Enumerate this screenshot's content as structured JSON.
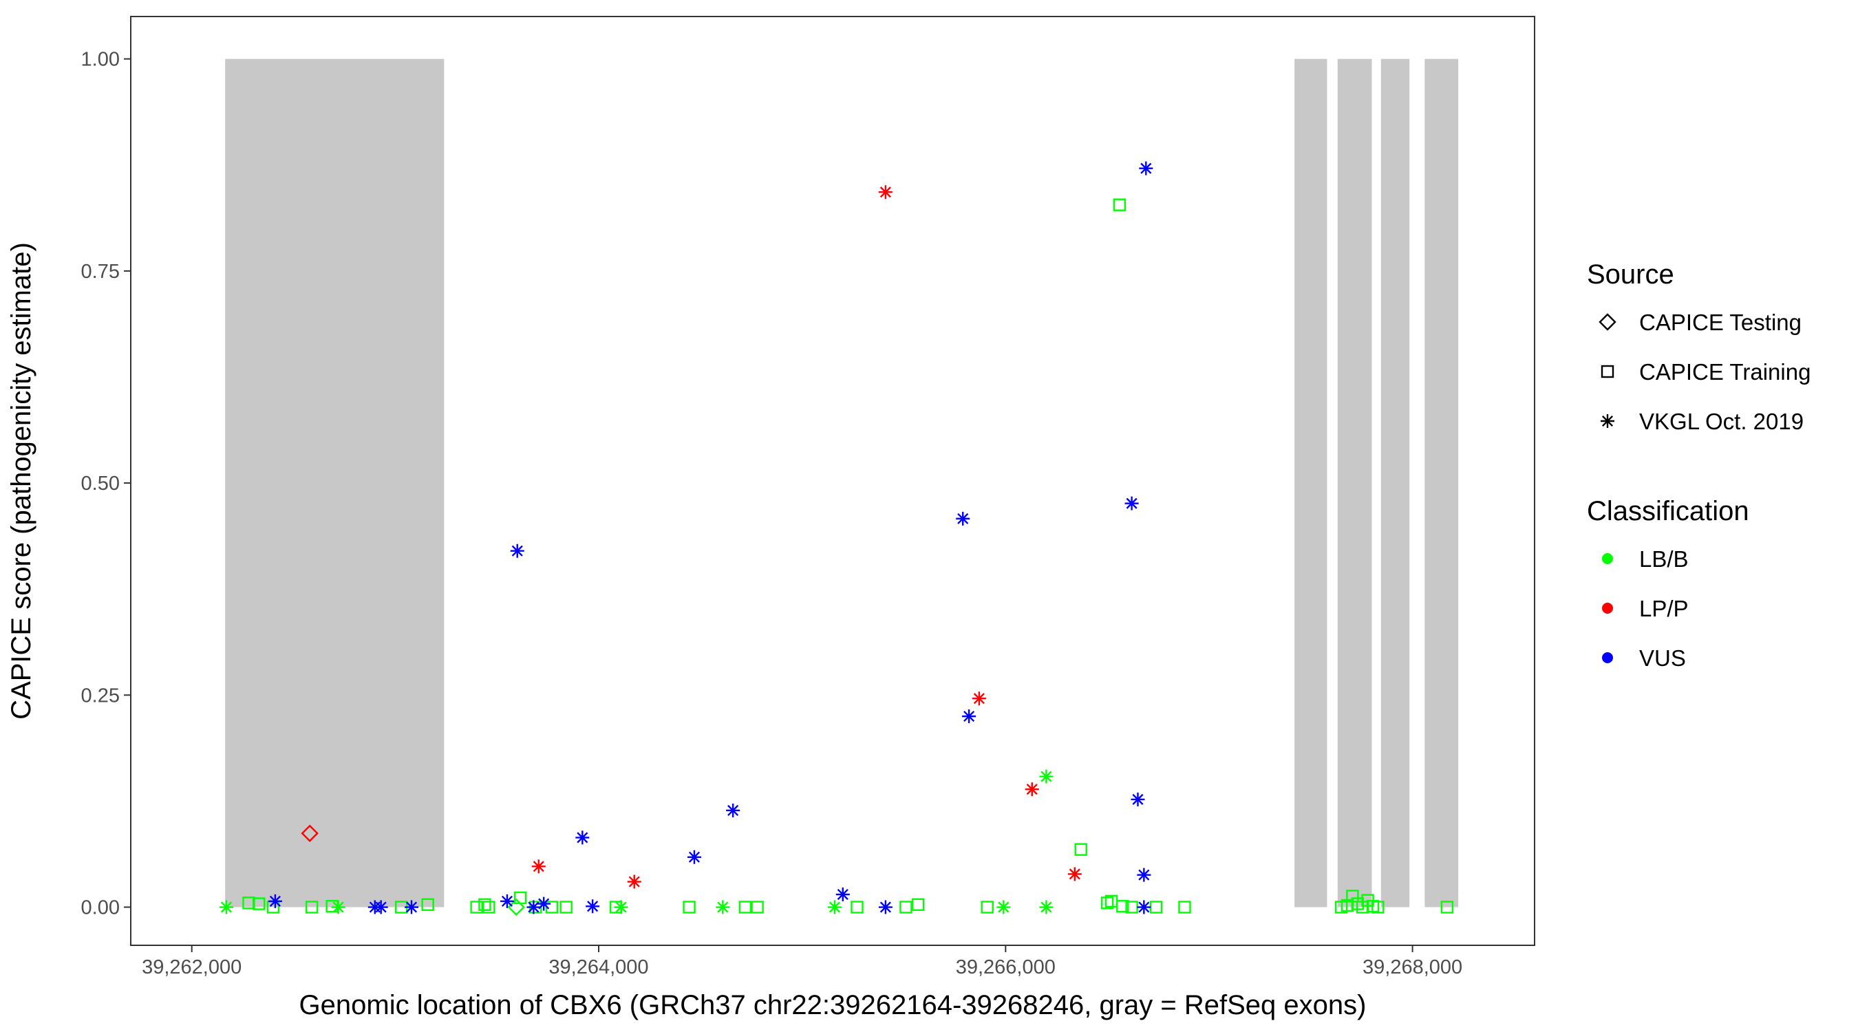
{
  "chart_data": {
    "type": "scatter",
    "title": "",
    "xlabel": "Genomic location of CBX6 (GRCh37 chr22:39262164-39268246, gray = RefSeq exons)",
    "ylabel": "CAPICE score (pathogenicity estimate)",
    "xlim": [
      39261700,
      39268600
    ],
    "ylim": [
      -0.045,
      1.05
    ],
    "x_ticks": [
      39262000,
      39264000,
      39266000,
      39268000
    ],
    "x_tick_labels": [
      "39,262,000",
      "39,264,000",
      "39,266,000",
      "39,268,000"
    ],
    "y_ticks": [
      0,
      0.25,
      0.5,
      0.75,
      1.0
    ],
    "y_tick_labels": [
      "0.00",
      "0.25",
      "0.50",
      "0.75",
      "1.00"
    ],
    "grid": false,
    "exons": [
      [
        39262164,
        39263240
      ],
      [
        39267420,
        39267580
      ],
      [
        39267632,
        39267800
      ],
      [
        39267845,
        39267985
      ],
      [
        39268060,
        39268225
      ]
    ],
    "exon_y_range": [
      0,
      1
    ],
    "exon_color": "#c8c8c8",
    "legends": [
      {
        "title": "Source",
        "position": "right",
        "entries": [
          {
            "label": "CAPICE Testing",
            "shape": "diamond"
          },
          {
            "label": "CAPICE Training",
            "shape": "square"
          },
          {
            "label": "VKGL Oct. 2019",
            "shape": "asterisk"
          }
        ]
      },
      {
        "title": "Classification",
        "position": "right",
        "entries": [
          {
            "label": "LB/B",
            "color": "#00ff00"
          },
          {
            "label": "LP/P",
            "color": "#ff0000"
          },
          {
            "label": "VUS",
            "color": "#0000ff"
          }
        ]
      }
    ],
    "class_colors": {
      "LB/B": "#00ff00",
      "LP/P": "#ff0000",
      "VUS": "#0000ff"
    },
    "points": [
      {
        "x": 39262580,
        "y": 0.087,
        "source": "CAPICE Testing",
        "class": "LP/P"
      },
      {
        "x": 39263595,
        "y": 0.0,
        "source": "CAPICE Testing",
        "class": "LB/B"
      },
      {
        "x": 39262280,
        "y": 0.005,
        "source": "CAPICE Training",
        "class": "LB/B"
      },
      {
        "x": 39262330,
        "y": 0.004,
        "source": "CAPICE Training",
        "class": "LB/B"
      },
      {
        "x": 39262400,
        "y": 0.0,
        "source": "CAPICE Training",
        "class": "LB/B"
      },
      {
        "x": 39262590,
        "y": 0.0,
        "source": "CAPICE Training",
        "class": "LB/B"
      },
      {
        "x": 39262690,
        "y": 0.001,
        "source": "CAPICE Training",
        "class": "LB/B"
      },
      {
        "x": 39263030,
        "y": 0.0,
        "source": "CAPICE Training",
        "class": "LB/B"
      },
      {
        "x": 39263160,
        "y": 0.003,
        "source": "CAPICE Training",
        "class": "LB/B"
      },
      {
        "x": 39263400,
        "y": 0.0,
        "source": "CAPICE Training",
        "class": "LB/B"
      },
      {
        "x": 39263440,
        "y": 0.003,
        "source": "CAPICE Training",
        "class": "LB/B"
      },
      {
        "x": 39263460,
        "y": 0.0,
        "source": "CAPICE Training",
        "class": "LB/B"
      },
      {
        "x": 39263615,
        "y": 0.011,
        "source": "CAPICE Training",
        "class": "LB/B"
      },
      {
        "x": 39263690,
        "y": 0.0,
        "source": "CAPICE Training",
        "class": "LB/B"
      },
      {
        "x": 39263770,
        "y": 0.0,
        "source": "CAPICE Training",
        "class": "LB/B"
      },
      {
        "x": 39263840,
        "y": 0.0,
        "source": "CAPICE Training",
        "class": "LB/B"
      },
      {
        "x": 39264085,
        "y": 0.0,
        "source": "CAPICE Training",
        "class": "LB/B"
      },
      {
        "x": 39264445,
        "y": 0.0,
        "source": "CAPICE Training",
        "class": "LB/B"
      },
      {
        "x": 39264720,
        "y": 0.0,
        "source": "CAPICE Training",
        "class": "LB/B"
      },
      {
        "x": 39264780,
        "y": 0.0,
        "source": "CAPICE Training",
        "class": "LB/B"
      },
      {
        "x": 39265270,
        "y": 0.0,
        "source": "CAPICE Training",
        "class": "LB/B"
      },
      {
        "x": 39265510,
        "y": 0.0,
        "source": "CAPICE Training",
        "class": "LB/B"
      },
      {
        "x": 39265570,
        "y": 0.003,
        "source": "CAPICE Training",
        "class": "LB/B"
      },
      {
        "x": 39265910,
        "y": 0.0,
        "source": "CAPICE Training",
        "class": "LB/B"
      },
      {
        "x": 39266370,
        "y": 0.068,
        "source": "CAPICE Training",
        "class": "LB/B"
      },
      {
        "x": 39266500,
        "y": 0.005,
        "source": "CAPICE Training",
        "class": "LB/B"
      },
      {
        "x": 39266520,
        "y": 0.007,
        "source": "CAPICE Training",
        "class": "LB/B"
      },
      {
        "x": 39266560,
        "y": 0.828,
        "source": "CAPICE Training",
        "class": "LB/B"
      },
      {
        "x": 39266575,
        "y": 0.001,
        "source": "CAPICE Training",
        "class": "LB/B"
      },
      {
        "x": 39266620,
        "y": 0.0,
        "source": "CAPICE Training",
        "class": "LB/B"
      },
      {
        "x": 39266740,
        "y": 0.0,
        "source": "CAPICE Training",
        "class": "LB/B"
      },
      {
        "x": 39266880,
        "y": 0.0,
        "source": "CAPICE Training",
        "class": "LB/B"
      },
      {
        "x": 39267650,
        "y": 0.0,
        "source": "CAPICE Training",
        "class": "LB/B"
      },
      {
        "x": 39267680,
        "y": 0.002,
        "source": "CAPICE Training",
        "class": "LB/B"
      },
      {
        "x": 39267705,
        "y": 0.013,
        "source": "CAPICE Training",
        "class": "LB/B"
      },
      {
        "x": 39267730,
        "y": 0.004,
        "source": "CAPICE Training",
        "class": "LB/B"
      },
      {
        "x": 39267755,
        "y": 0.0,
        "source": "CAPICE Training",
        "class": "LB/B"
      },
      {
        "x": 39267780,
        "y": 0.008,
        "source": "CAPICE Training",
        "class": "LB/B"
      },
      {
        "x": 39267805,
        "y": 0.001,
        "source": "CAPICE Training",
        "class": "LB/B"
      },
      {
        "x": 39267830,
        "y": 0.0,
        "source": "CAPICE Training",
        "class": "LB/B"
      },
      {
        "x": 39268170,
        "y": 0.0,
        "source": "CAPICE Training",
        "class": "LB/B"
      },
      {
        "x": 39262170,
        "y": 0.0,
        "source": "VKGL Oct. 2019",
        "class": "LB/B"
      },
      {
        "x": 39262720,
        "y": 0.0,
        "source": "VKGL Oct. 2019",
        "class": "LB/B"
      },
      {
        "x": 39264110,
        "y": 0.0,
        "source": "VKGL Oct. 2019",
        "class": "LB/B"
      },
      {
        "x": 39264610,
        "y": 0.0,
        "source": "VKGL Oct. 2019",
        "class": "LB/B"
      },
      {
        "x": 39265160,
        "y": 0.0,
        "source": "VKGL Oct. 2019",
        "class": "LB/B"
      },
      {
        "x": 39265990,
        "y": 0.0,
        "source": "VKGL Oct. 2019",
        "class": "LB/B"
      },
      {
        "x": 39266200,
        "y": 0.154,
        "source": "VKGL Oct. 2019",
        "class": "LB/B"
      },
      {
        "x": 39266200,
        "y": 0.0,
        "source": "VKGL Oct. 2019",
        "class": "LB/B"
      },
      {
        "x": 39263705,
        "y": 0.048,
        "source": "VKGL Oct. 2019",
        "class": "LP/P"
      },
      {
        "x": 39264175,
        "y": 0.03,
        "source": "VKGL Oct. 2019",
        "class": "LP/P"
      },
      {
        "x": 39265410,
        "y": 0.843,
        "source": "VKGL Oct. 2019",
        "class": "LP/P"
      },
      {
        "x": 39265870,
        "y": 0.246,
        "source": "VKGL Oct. 2019",
        "class": "LP/P"
      },
      {
        "x": 39266130,
        "y": 0.139,
        "source": "VKGL Oct. 2019",
        "class": "LP/P"
      },
      {
        "x": 39266340,
        "y": 0.039,
        "source": "VKGL Oct. 2019",
        "class": "LP/P"
      },
      {
        "x": 39262410,
        "y": 0.007,
        "source": "VKGL Oct. 2019",
        "class": "VUS"
      },
      {
        "x": 39262900,
        "y": 0.0,
        "source": "VKGL Oct. 2019",
        "class": "VUS"
      },
      {
        "x": 39262930,
        "y": 0.0,
        "source": "VKGL Oct. 2019",
        "class": "VUS"
      },
      {
        "x": 39263080,
        "y": 0.0,
        "source": "VKGL Oct. 2019",
        "class": "VUS"
      },
      {
        "x": 39263550,
        "y": 0.007,
        "source": "VKGL Oct. 2019",
        "class": "VUS"
      },
      {
        "x": 39263600,
        "y": 0.42,
        "source": "VKGL Oct. 2019",
        "class": "VUS"
      },
      {
        "x": 39263680,
        "y": 0.0,
        "source": "VKGL Oct. 2019",
        "class": "VUS"
      },
      {
        "x": 39263730,
        "y": 0.004,
        "source": "VKGL Oct. 2019",
        "class": "VUS"
      },
      {
        "x": 39263920,
        "y": 0.082,
        "source": "VKGL Oct. 2019",
        "class": "VUS"
      },
      {
        "x": 39263970,
        "y": 0.001,
        "source": "VKGL Oct. 2019",
        "class": "VUS"
      },
      {
        "x": 39264470,
        "y": 0.059,
        "source": "VKGL Oct. 2019",
        "class": "VUS"
      },
      {
        "x": 39264660,
        "y": 0.114,
        "source": "VKGL Oct. 2019",
        "class": "VUS"
      },
      {
        "x": 39265200,
        "y": 0.015,
        "source": "VKGL Oct. 2019",
        "class": "VUS"
      },
      {
        "x": 39265410,
        "y": 0.0,
        "source": "VKGL Oct. 2019",
        "class": "VUS"
      },
      {
        "x": 39265790,
        "y": 0.458,
        "source": "VKGL Oct. 2019",
        "class": "VUS"
      },
      {
        "x": 39265820,
        "y": 0.225,
        "source": "VKGL Oct. 2019",
        "class": "VUS"
      },
      {
        "x": 39266620,
        "y": 0.476,
        "source": "VKGL Oct. 2019",
        "class": "VUS"
      },
      {
        "x": 39266650,
        "y": 0.127,
        "source": "VKGL Oct. 2019",
        "class": "VUS"
      },
      {
        "x": 39266680,
        "y": 0.0,
        "source": "VKGL Oct. 2019",
        "class": "VUS"
      },
      {
        "x": 39266680,
        "y": 0.038,
        "source": "VKGL Oct. 2019",
        "class": "VUS"
      },
      {
        "x": 39266690,
        "y": 0.871,
        "source": "VKGL Oct. 2019",
        "class": "VUS"
      }
    ]
  }
}
